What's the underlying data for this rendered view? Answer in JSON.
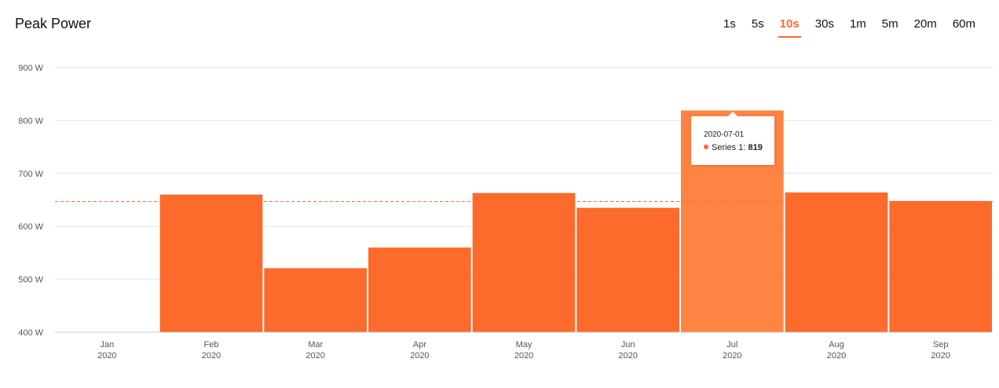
{
  "header": {
    "title": "Peak Power",
    "ranges": [
      "1s",
      "5s",
      "10s",
      "30s",
      "1m",
      "5m",
      "20m",
      "60m"
    ],
    "active_range": "10s"
  },
  "colors": {
    "bar": "#fc6a2c",
    "bar_highlight": "#ff8443",
    "reference_line": "#fc6a2c",
    "grid": "#e4e4ec",
    "baseline": "#c8c8e0"
  },
  "tooltip": {
    "date": "2020-07-01",
    "series_label": "Series 1: ",
    "value": "819"
  },
  "chart_data": {
    "type": "bar",
    "categories": [
      "Jan",
      "Feb",
      "Mar",
      "Apr",
      "May",
      "Jun",
      "Jul",
      "Aug",
      "Sep"
    ],
    "category_years": [
      "2020",
      "2020",
      "2020",
      "2020",
      "2020",
      "2020",
      "2020",
      "2020",
      "2020"
    ],
    "series": [
      {
        "name": "Series 1",
        "values": [
          null,
          660,
          521,
          560,
          663,
          635,
          819,
          664,
          648
        ]
      }
    ],
    "y_ticks": [
      "400 W",
      "500 W",
      "600 W",
      "700 W",
      "800 W",
      "900 W"
    ],
    "y_tick_values": [
      400,
      500,
      600,
      700,
      800,
      900
    ],
    "ylim": [
      400,
      900
    ],
    "reference_line": 647,
    "highlighted_category": "Jul",
    "grid": true,
    "legend": "none"
  }
}
